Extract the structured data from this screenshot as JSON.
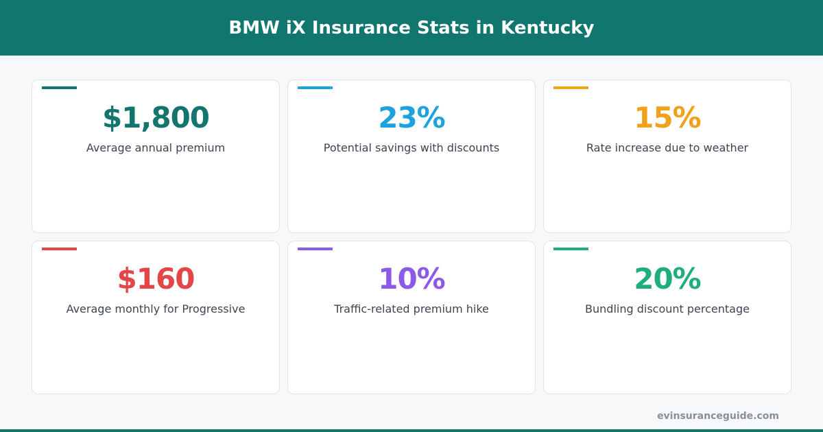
{
  "header": {
    "title": "BMW iX Insurance Stats in Kentucky"
  },
  "cards": [
    {
      "value": "$1,800",
      "label": "Average annual premium",
      "color": "#13756d"
    },
    {
      "value": "23%",
      "label": "Potential savings with discounts",
      "color": "#1ca3dd"
    },
    {
      "value": "15%",
      "label": "Rate increase due to weather",
      "color": "#f0a11b"
    },
    {
      "value": "$160",
      "label": "Average monthly for Progressive",
      "color": "#e34646"
    },
    {
      "value": "10%",
      "label": "Traffic-related premium hike",
      "color": "#8c5ae8"
    },
    {
      "value": "20%",
      "label": "Bundling discount percentage",
      "color": "#1fae7b"
    }
  ],
  "footer": {
    "source": "evinsuranceguide.com"
  }
}
